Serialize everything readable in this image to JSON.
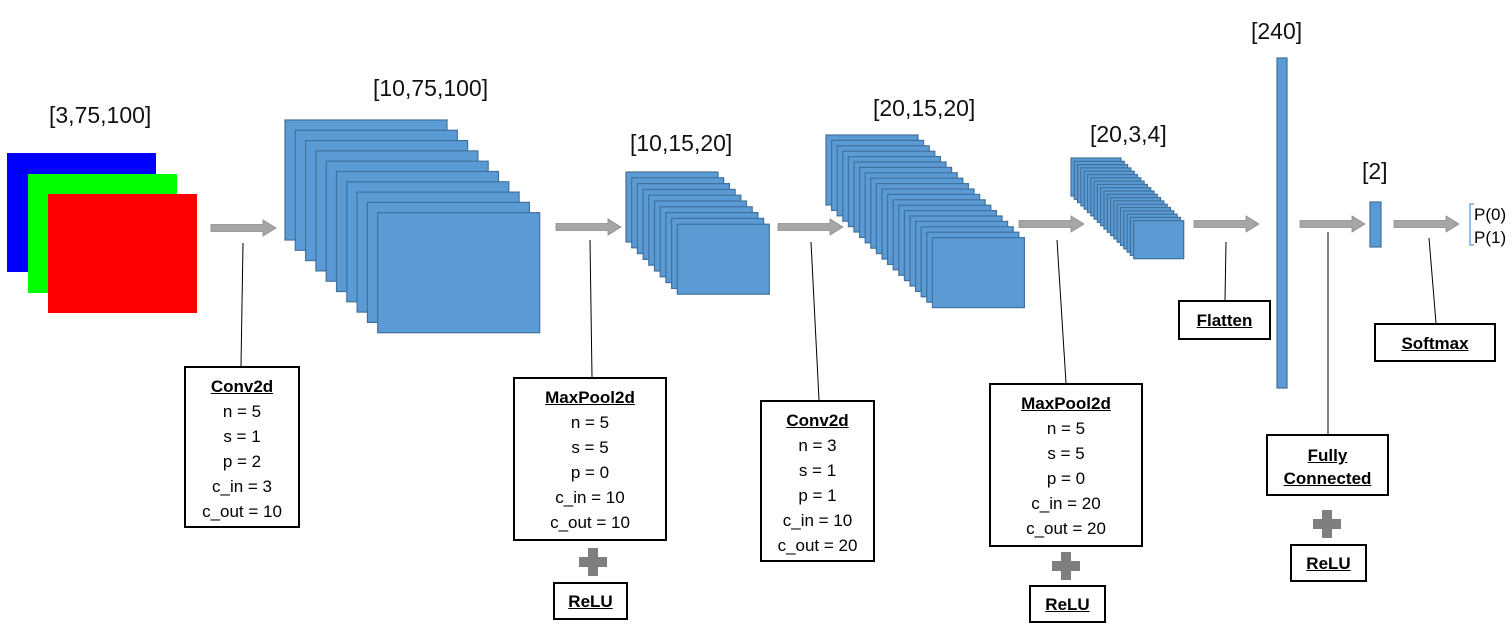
{
  "shapes": {
    "input": "[3,75,100]",
    "conv1": "[10,75,100]",
    "pool1": "[10,15,20]",
    "conv2": "[20,15,20]",
    "pool2": "[20,3,4]",
    "flat": "[240]",
    "fc": "[2]"
  },
  "layers": {
    "conv1": {
      "title": "Conv2d",
      "params": [
        "n = 5",
        "s = 1",
        "p = 2",
        "c_in = 3",
        "c_out = 10"
      ]
    },
    "pool1": {
      "title": "MaxPool2d",
      "params": [
        "n = 5",
        "s = 5",
        "p = 0",
        "c_in = 10",
        "c_out = 10"
      ],
      "activation": "ReLU"
    },
    "conv2": {
      "title": "Conv2d",
      "params": [
        "n = 3",
        "s = 1",
        "p = 1",
        "c_in = 10",
        "c_out = 20"
      ]
    },
    "pool2": {
      "title": "MaxPool2d",
      "params": [
        "n = 5",
        "s = 5",
        "p = 0",
        "c_in = 20",
        "c_out = 20"
      ],
      "activation": "ReLU"
    },
    "flatten": {
      "title": "Flatten"
    },
    "fc": {
      "title_line1": "Fully",
      "title_line2": "Connected",
      "activation": "ReLU"
    },
    "softmax": {
      "title": "Softmax"
    }
  },
  "outputs": [
    "P(0)",
    "P(1)"
  ],
  "colors": {
    "feature_map": "#5b9bd5",
    "feature_map_border": "#41719c",
    "input_channels": [
      "#0000ff",
      "#00ff00",
      "#ff0000"
    ],
    "arrow": "#a6a6a6",
    "plus": "#7f7f7f"
  }
}
